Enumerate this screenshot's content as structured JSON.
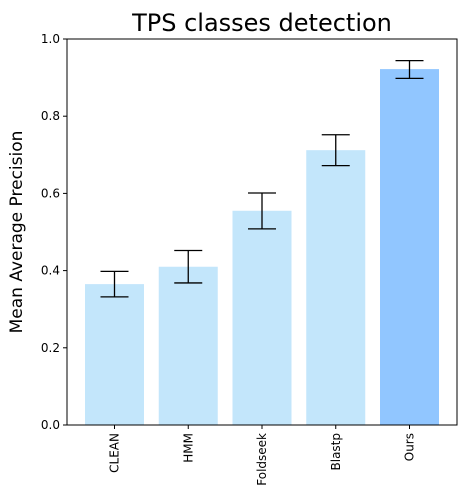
{
  "chart_data": {
    "type": "bar",
    "title": "TPS classes detection",
    "xlabel": "",
    "ylabel": "Mean Average Precision",
    "categories": [
      "CLEAN",
      "HMM",
      "Foldseek",
      "Blastp",
      "Ours"
    ],
    "values": [
      0.365,
      0.41,
      0.555,
      0.712,
      0.922
    ],
    "error_low": [
      0.332,
      0.368,
      0.508,
      0.672,
      0.898
    ],
    "error_high": [
      0.398,
      0.452,
      0.601,
      0.752,
      0.944
    ],
    "colors": [
      "#c3e6fb",
      "#c3e6fb",
      "#c3e6fb",
      "#c3e6fb",
      "#91c6ff"
    ],
    "ylim": [
      0,
      1.0
    ],
    "yticks": [
      "0.0",
      "0.2",
      "0.4",
      "0.6",
      "0.8",
      "1.0"
    ],
    "grid": false,
    "legend": "none"
  }
}
